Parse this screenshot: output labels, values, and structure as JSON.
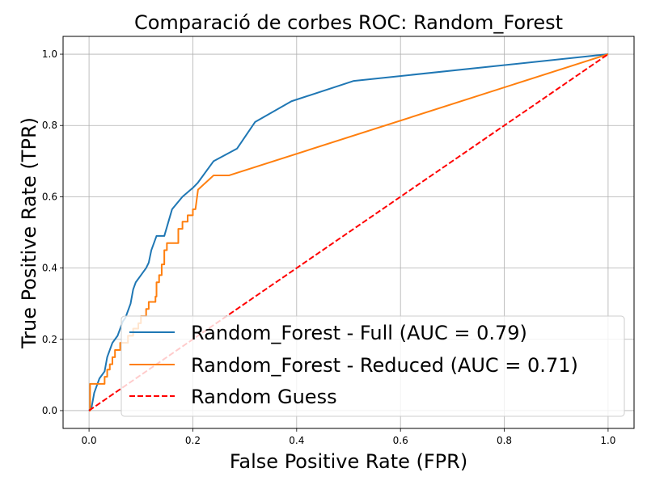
{
  "chart_data": {
    "type": "line",
    "title": "Comparació de corbes ROC: Random_Forest",
    "xlabel": "False Positive Rate (FPR)",
    "ylabel": "True Positive Rate (TPR)",
    "xlim": [
      -0.05,
      1.05
    ],
    "ylim": [
      -0.05,
      1.05
    ],
    "xticks": [
      0.0,
      0.2,
      0.4,
      0.6,
      0.8,
      1.0
    ],
    "yticks": [
      0.0,
      0.2,
      0.4,
      0.6,
      0.8,
      1.0
    ],
    "xtick_labels": [
      "0.0",
      "0.2",
      "0.4",
      "0.6",
      "0.8",
      "1.0"
    ],
    "ytick_labels": [
      "0.0",
      "0.2",
      "0.4",
      "0.6",
      "0.8",
      "1.0"
    ],
    "grid": true,
    "legend_position": "lower-right",
    "series": [
      {
        "name": "Random_Forest - Full (AUC = 0.79)",
        "color": "#1f77b4",
        "style": "solid",
        "x": [
          0.0,
          0.005,
          0.01,
          0.015,
          0.02,
          0.025,
          0.03,
          0.035,
          0.04,
          0.045,
          0.05,
          0.055,
          0.06,
          0.065,
          0.07,
          0.075,
          0.08,
          0.085,
          0.09,
          0.1,
          0.11,
          0.115,
          0.12,
          0.13,
          0.135,
          0.14,
          0.145,
          0.16,
          0.18,
          0.2,
          0.21,
          0.24,
          0.285,
          0.32,
          0.39,
          0.51,
          1.0
        ],
        "y": [
          0.0,
          0.01,
          0.05,
          0.07,
          0.09,
          0.1,
          0.11,
          0.15,
          0.17,
          0.19,
          0.2,
          0.21,
          0.23,
          0.25,
          0.26,
          0.28,
          0.3,
          0.34,
          0.36,
          0.38,
          0.4,
          0.415,
          0.45,
          0.49,
          0.49,
          0.49,
          0.49,
          0.565,
          0.6,
          0.625,
          0.64,
          0.7,
          0.735,
          0.81,
          0.868,
          0.925,
          1.0
        ]
      },
      {
        "name": "Random_Forest - Reduced (AUC = 0.71)",
        "color": "#ff7f0e",
        "style": "solid",
        "x": [
          0.0,
          0.002,
          0.002,
          0.03,
          0.03,
          0.035,
          0.035,
          0.04,
          0.04,
          0.045,
          0.045,
          0.05,
          0.05,
          0.06,
          0.06,
          0.075,
          0.075,
          0.085,
          0.085,
          0.095,
          0.095,
          0.1,
          0.1,
          0.11,
          0.11,
          0.115,
          0.115,
          0.128,
          0.128,
          0.13,
          0.13,
          0.135,
          0.135,
          0.14,
          0.14,
          0.145,
          0.145,
          0.15,
          0.15,
          0.172,
          0.172,
          0.18,
          0.18,
          0.19,
          0.19,
          0.2,
          0.2,
          0.205,
          0.21,
          0.24,
          0.27,
          1.0
        ],
        "y": [
          0.0,
          0.0,
          0.075,
          0.075,
          0.095,
          0.095,
          0.115,
          0.115,
          0.13,
          0.13,
          0.15,
          0.15,
          0.17,
          0.17,
          0.19,
          0.19,
          0.21,
          0.21,
          0.23,
          0.23,
          0.245,
          0.245,
          0.265,
          0.265,
          0.285,
          0.285,
          0.305,
          0.305,
          0.32,
          0.32,
          0.36,
          0.36,
          0.38,
          0.38,
          0.41,
          0.41,
          0.45,
          0.45,
          0.47,
          0.47,
          0.51,
          0.51,
          0.53,
          0.53,
          0.548,
          0.548,
          0.565,
          0.565,
          0.62,
          0.66,
          0.66,
          1.0
        ]
      },
      {
        "name": "Random Guess",
        "color": "#ff0000",
        "style": "dashed",
        "x": [
          0.0,
          1.0
        ],
        "y": [
          0.0,
          1.0
        ]
      }
    ]
  }
}
